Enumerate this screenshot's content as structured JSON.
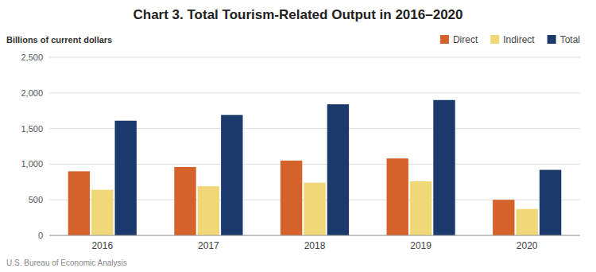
{
  "chart_data": {
    "type": "bar",
    "title": "Chart 3. Total Tourism-Related Output in 2016–2020",
    "ylabel": "Billions of current dollars",
    "source": "U.S. Bureau of Economic Analysis",
    "categories": [
      "2016",
      "2017",
      "2018",
      "2019",
      "2020"
    ],
    "series": [
      {
        "name": "Direct",
        "color": "#D4622A",
        "values": [
          900,
          960,
          1050,
          1080,
          500
        ]
      },
      {
        "name": "Indirect",
        "color": "#F0D878",
        "values": [
          640,
          690,
          740,
          760,
          370
        ]
      },
      {
        "name": "Total",
        "color": "#1B3A6B",
        "values": [
          1610,
          1690,
          1840,
          1900,
          920
        ]
      }
    ],
    "ylim": [
      0,
      2500
    ],
    "yticks": [
      0,
      500,
      {
        "value": 1000,
        "label": "1,000"
      },
      {
        "value": 1500,
        "label": "1,500"
      },
      {
        "value": 2000,
        "label": "2,000"
      },
      {
        "value": 2500,
        "label": "2,500"
      }
    ],
    "grid": true,
    "legend": "top-right"
  }
}
